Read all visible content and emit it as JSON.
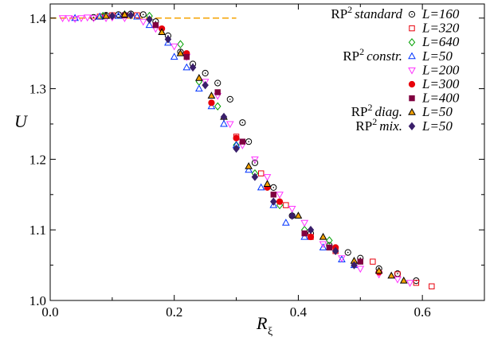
{
  "chart_data": {
    "type": "scatter",
    "xlabel": "R",
    "xlabel_sub": "ξ",
    "ylabel": "U",
    "xlim": [
      0.0,
      0.7
    ],
    "ylim": [
      1.0,
      1.42
    ],
    "xticks": [
      "0.0",
      "0.2",
      "0.4",
      "0.6"
    ],
    "xtick_values": [
      0.0,
      0.2,
      0.4,
      0.6
    ],
    "yticks": [
      "1.0",
      "1.1",
      "1.2",
      "1.3",
      "1.4"
    ],
    "ytick_values": [
      1.0,
      1.1,
      1.2,
      1.3,
      1.4
    ],
    "grid": false,
    "legend_position": "top-right",
    "reference_line": {
      "y": 1.4,
      "x_from": 0.0,
      "x_to": 0.3,
      "style": "dashed",
      "color": "#f5a300"
    },
    "series": [
      {
        "group": "RP",
        "group_sup": "2",
        "group_style": "standard",
        "name": "L=160",
        "marker": "circle",
        "color": "#000000",
        "fill": "none",
        "points": [
          [
            0.07,
            1.401
          ],
          [
            0.09,
            1.404
          ],
          [
            0.11,
            1.405
          ],
          [
            0.13,
            1.406
          ],
          [
            0.15,
            1.405
          ],
          [
            0.17,
            1.395
          ],
          [
            0.19,
            1.375
          ],
          [
            0.21,
            1.352
          ],
          [
            0.23,
            1.335
          ],
          [
            0.25,
            1.322
          ],
          [
            0.27,
            1.308
          ],
          [
            0.29,
            1.285
          ],
          [
            0.31,
            1.252
          ],
          [
            0.32,
            1.225
          ],
          [
            0.33,
            1.195
          ],
          [
            0.36,
            1.16
          ],
          [
            0.39,
            1.12
          ],
          [
            0.42,
            1.095
          ],
          [
            0.45,
            1.078
          ],
          [
            0.48,
            1.068
          ],
          [
            0.5,
            1.06
          ],
          [
            0.53,
            1.045
          ],
          [
            0.56,
            1.038
          ],
          [
            0.59,
            1.028
          ]
        ]
      },
      {
        "group": "",
        "name": "L=320",
        "marker": "square",
        "color": "#e8000b",
        "fill": "none",
        "points": [
          [
            0.08,
            1.402
          ],
          [
            0.1,
            1.404
          ],
          [
            0.14,
            1.404
          ],
          [
            0.3,
            1.232
          ],
          [
            0.34,
            1.18
          ],
          [
            0.38,
            1.135
          ],
          [
            0.42,
            1.09
          ],
          [
            0.46,
            1.07
          ],
          [
            0.52,
            1.055
          ],
          [
            0.56,
            1.037
          ],
          [
            0.59,
            1.025
          ],
          [
            0.615,
            1.02
          ]
        ]
      },
      {
        "group": "",
        "name": "L=640",
        "marker": "diamond",
        "color": "#00a000",
        "fill": "none",
        "points": [
          [
            0.085,
            1.403
          ],
          [
            0.12,
            1.405
          ],
          [
            0.16,
            1.403
          ],
          [
            0.21,
            1.363
          ],
          [
            0.24,
            1.31
          ],
          [
            0.27,
            1.275
          ],
          [
            0.3,
            1.22
          ],
          [
            0.33,
            1.18
          ],
          [
            0.37,
            1.135
          ],
          [
            0.41,
            1.1
          ],
          [
            0.45,
            1.085
          ]
        ]
      },
      {
        "group": "RP",
        "group_sup": "2",
        "group_style": "constr.",
        "name": "L=50",
        "marker": "triangle-up",
        "color": "#0033ff",
        "fill": "none",
        "points": [
          [
            0.04,
            1.4
          ],
          [
            0.08,
            1.402
          ],
          [
            0.11,
            1.403
          ],
          [
            0.14,
            1.402
          ],
          [
            0.16,
            1.39
          ],
          [
            0.19,
            1.365
          ],
          [
            0.2,
            1.345
          ],
          [
            0.22,
            1.33
          ],
          [
            0.24,
            1.3
          ],
          [
            0.26,
            1.275
          ],
          [
            0.28,
            1.25
          ],
          [
            0.3,
            1.22
          ],
          [
            0.32,
            1.185
          ],
          [
            0.34,
            1.16
          ],
          [
            0.36,
            1.135
          ],
          [
            0.38,
            1.11
          ],
          [
            0.41,
            1.09
          ],
          [
            0.44,
            1.075
          ],
          [
            0.47,
            1.058
          ],
          [
            0.49,
            1.05
          ]
        ]
      },
      {
        "group": "",
        "name": "L=200",
        "marker": "triangle-down",
        "color": "#ff33ff",
        "fill": "none",
        "points": [
          [
            0.02,
            1.4
          ],
          [
            0.03,
            1.4
          ],
          [
            0.04,
            1.399
          ],
          [
            0.05,
            1.4
          ],
          [
            0.06,
            1.401
          ],
          [
            0.07,
            1.4
          ],
          [
            0.09,
            1.4
          ],
          [
            0.1,
            1.401
          ],
          [
            0.12,
            1.4
          ],
          [
            0.15,
            1.395
          ],
          [
            0.17,
            1.385
          ],
          [
            0.2,
            1.36
          ],
          [
            0.22,
            1.345
          ],
          [
            0.25,
            1.31
          ],
          [
            0.27,
            1.29
          ],
          [
            0.29,
            1.25
          ],
          [
            0.31,
            1.22
          ],
          [
            0.33,
            1.2
          ],
          [
            0.35,
            1.175
          ],
          [
            0.37,
            1.15
          ],
          [
            0.39,
            1.13
          ],
          [
            0.41,
            1.11
          ],
          [
            0.44,
            1.08
          ],
          [
            0.47,
            1.06
          ],
          [
            0.5,
            1.045
          ],
          [
            0.53,
            1.037
          ],
          [
            0.56,
            1.03
          ],
          [
            0.58,
            1.025
          ]
        ]
      },
      {
        "group": "",
        "name": "L=300",
        "marker": "circle",
        "color": "#e8000b",
        "fill": "#e8000b",
        "points": [
          [
            0.18,
            1.385
          ],
          [
            0.22,
            1.35
          ],
          [
            0.26,
            1.28
          ],
          [
            0.3,
            1.23
          ],
          [
            0.35,
            1.16
          ],
          [
            0.37,
            1.14
          ],
          [
            0.42,
            1.09
          ],
          [
            0.46,
            1.075
          ],
          [
            0.53,
            1.04
          ]
        ]
      },
      {
        "group": "",
        "name": "L=400",
        "marker": "square",
        "color": "#800040",
        "fill": "#800040",
        "points": [
          [
            0.12,
            1.404
          ],
          [
            0.17,
            1.39
          ],
          [
            0.22,
            1.345
          ],
          [
            0.27,
            1.295
          ],
          [
            0.31,
            1.225
          ],
          [
            0.36,
            1.15
          ],
          [
            0.41,
            1.095
          ],
          [
            0.45,
            1.075
          ],
          [
            0.5,
            1.055
          ]
        ]
      },
      {
        "group": "RP",
        "group_sup": "2",
        "group_style": "diag.",
        "name": "L=50",
        "marker": "triangle-up",
        "color": "#000000",
        "fill": "#f5a300",
        "points": [
          [
            0.09,
            1.403
          ],
          [
            0.12,
            1.405
          ],
          [
            0.18,
            1.38
          ],
          [
            0.21,
            1.35
          ],
          [
            0.24,
            1.315
          ],
          [
            0.26,
            1.29
          ],
          [
            0.28,
            1.26
          ],
          [
            0.32,
            1.19
          ],
          [
            0.35,
            1.165
          ],
          [
            0.4,
            1.12
          ],
          [
            0.44,
            1.09
          ],
          [
            0.49,
            1.056
          ],
          [
            0.53,
            1.042
          ],
          [
            0.55,
            1.035
          ],
          [
            0.57,
            1.028
          ]
        ]
      },
      {
        "group": "RP",
        "group_sup": "2",
        "group_style": "mix.",
        "name": "L=50",
        "marker": "diamond",
        "color": "#3a1f6a",
        "fill": "#3a1f6a",
        "points": [
          [
            0.1,
            1.403
          ],
          [
            0.13,
            1.404
          ],
          [
            0.16,
            1.398
          ],
          [
            0.19,
            1.37
          ],
          [
            0.23,
            1.33
          ],
          [
            0.25,
            1.305
          ],
          [
            0.28,
            1.26
          ],
          [
            0.3,
            1.215
          ],
          [
            0.33,
            1.175
          ],
          [
            0.36,
            1.14
          ],
          [
            0.39,
            1.12
          ],
          [
            0.42,
            1.1
          ],
          [
            0.46,
            1.07
          ],
          [
            0.49,
            1.05
          ]
        ]
      }
    ]
  }
}
